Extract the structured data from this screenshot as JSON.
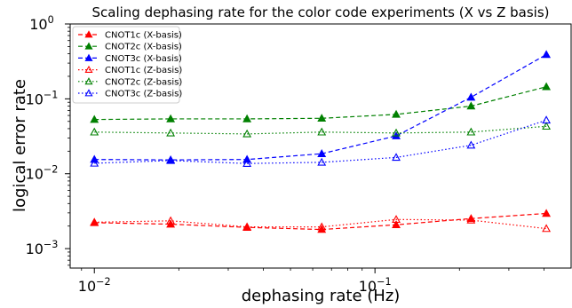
{
  "chart_data": {
    "type": "line",
    "title": "Scaling dephasing rate for the color code experiments (X vs Z basis)",
    "xlabel": "dephasing rate (Hz)",
    "ylabel": "logical error rate",
    "xscale": "log",
    "yscale": "log",
    "xlim": [
      0.0082,
      0.5
    ],
    "ylim": [
      0.00055,
      1.0
    ],
    "x": [
      0.01,
      0.0187,
      0.035,
      0.0646,
      0.119,
      0.22,
      0.408
    ],
    "xticks": [
      {
        "value": 0.01,
        "label": "10",
        "exp": "−2"
      },
      {
        "value": 0.1,
        "label": "10",
        "exp": "−1"
      }
    ],
    "yticks": [
      {
        "value": 0.001,
        "label": "10",
        "exp": "−3"
      },
      {
        "value": 0.01,
        "label": "10",
        "exp": "−2"
      },
      {
        "value": 0.1,
        "label": "10",
        "exp": "−1"
      },
      {
        "value": 1,
        "label": "10",
        "exp": "0"
      }
    ],
    "grid": false,
    "legend_position": "top-left",
    "series": [
      {
        "name": "CNOT1c (X-basis)",
        "color": "#ff0000",
        "style": "dashed",
        "marker": "triangle-filled",
        "values": [
          0.00222,
          0.00212,
          0.00192,
          0.0018,
          0.00208,
          0.00252,
          0.00295
        ]
      },
      {
        "name": "CNOT2c (X-basis)",
        "color": "#008000",
        "style": "dashed",
        "marker": "triangle-filled",
        "values": [
          0.053,
          0.054,
          0.054,
          0.055,
          0.062,
          0.08,
          0.145
        ]
      },
      {
        "name": "CNOT3c (X-basis)",
        "color": "#0000ff",
        "style": "dashed",
        "marker": "triangle-filled",
        "values": [
          0.0155,
          0.0153,
          0.0155,
          0.0185,
          0.032,
          0.105,
          0.39
        ]
      },
      {
        "name": "CNOT1c (Z-basis)",
        "color": "#ff0000",
        "style": "dotted",
        "marker": "triangle-open",
        "values": [
          0.00225,
          0.00235,
          0.00195,
          0.00195,
          0.00245,
          0.0024,
          0.00185
        ]
      },
      {
        "name": "CNOT2c (Z-basis)",
        "color": "#008000",
        "style": "dotted",
        "marker": "triangle-open",
        "values": [
          0.036,
          0.035,
          0.034,
          0.036,
          0.035,
          0.036,
          0.043
        ]
      },
      {
        "name": "CNOT3c (Z-basis)",
        "color": "#0000ff",
        "style": "dotted",
        "marker": "triangle-open",
        "values": [
          0.0138,
          0.015,
          0.0137,
          0.0142,
          0.0165,
          0.024,
          0.052
        ]
      }
    ]
  }
}
